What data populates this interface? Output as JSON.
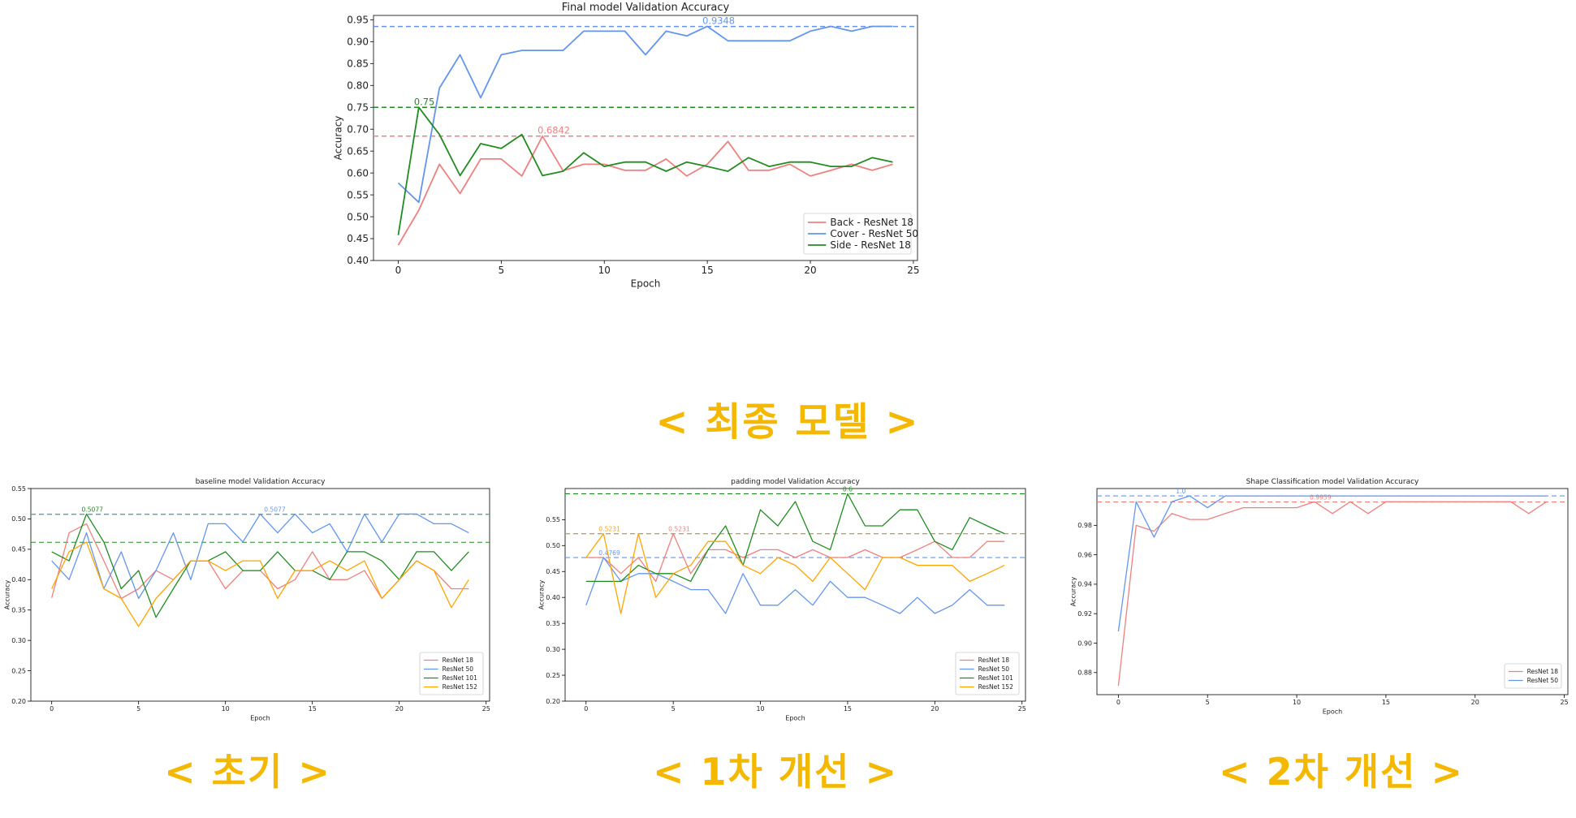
{
  "captions": {
    "final": "< 최종 모델 >",
    "baseline": "< 초기 >",
    "padding": "< 1차 개선 >",
    "shape": "< 2차 개선 >"
  },
  "chart_data": [
    {
      "id": "final",
      "type": "line",
      "title": "Final model Validation Accuracy",
      "xlabel": "Epoch",
      "ylabel": "Accuracy",
      "xlim": [
        -1.2,
        25.2
      ],
      "ylim": [
        0.4,
        0.96
      ],
      "xticks": [
        0,
        5,
        10,
        15,
        20,
        25
      ],
      "yticks": [
        0.4,
        0.45,
        0.5,
        0.55,
        0.6,
        0.65,
        0.7,
        0.75,
        0.8,
        0.85,
        0.9,
        0.95
      ],
      "ytick_labels": [
        "0.40",
        "0.45",
        "0.50",
        "0.55",
        "0.60",
        "0.65",
        "0.70",
        "0.75",
        "0.80",
        "0.85",
        "0.90",
        "0.95"
      ],
      "legend_position": "lower-right",
      "x": [
        0,
        1,
        2,
        3,
        4,
        5,
        6,
        7,
        8,
        9,
        10,
        11,
        12,
        13,
        14,
        15,
        16,
        17,
        18,
        19,
        20,
        21,
        22,
        23,
        24
      ],
      "series": [
        {
          "name": "Back - ResNet 18",
          "color": "#f08080",
          "values": [
            0.435,
            0.515,
            0.62,
            0.553,
            0.632,
            0.632,
            0.593,
            0.684,
            0.605,
            0.62,
            0.62,
            0.606,
            0.606,
            0.632,
            0.593,
            0.62,
            0.672,
            0.606,
            0.606,
            0.62,
            0.593,
            0.606,
            0.62,
            0.606,
            0.62
          ]
        },
        {
          "name": "Cover - ResNet 50",
          "color": "#6495ed",
          "values": [
            0.577,
            0.533,
            0.794,
            0.87,
            0.772,
            0.87,
            0.88,
            0.88,
            0.88,
            0.924,
            0.924,
            0.924,
            0.87,
            0.924,
            0.913,
            0.935,
            0.902,
            0.902,
            0.902,
            0.902,
            0.924,
            0.935,
            0.924,
            0.935,
            0.935
          ]
        },
        {
          "name": "Side - ResNet 18",
          "color": "#228b22",
          "values": [
            0.458,
            0.75,
            0.688,
            0.594,
            0.667,
            0.656,
            0.688,
            0.594,
            0.604,
            0.646,
            0.615,
            0.625,
            0.625,
            0.604,
            0.625,
            0.615,
            0.604,
            0.635,
            0.615,
            0.625,
            0.625,
            0.615,
            0.615,
            0.635,
            0.625
          ]
        }
      ],
      "hlines": [
        {
          "y": 0.9348,
          "color": "#6495ed",
          "label": "0.9348",
          "label_x": 15
        },
        {
          "y": 0.75,
          "color": "#228b22",
          "label": "0.75",
          "label_x": 1
        },
        {
          "y": 0.6842,
          "color": "#f08080",
          "label": "0.6842",
          "label_x": 7
        }
      ]
    },
    {
      "id": "baseline",
      "type": "line",
      "title": "baseline model Validation Accuracy",
      "xlabel": "Epoch",
      "ylabel": "Accuracy",
      "xlim": [
        -1.2,
        25.2
      ],
      "ylim": [
        0.2,
        0.55
      ],
      "xticks": [
        0,
        5,
        10,
        15,
        20,
        25
      ],
      "yticks": [
        0.2,
        0.25,
        0.3,
        0.35,
        0.4,
        0.45,
        0.5,
        0.55
      ],
      "ytick_labels": [
        "0.20",
        "0.25",
        "0.30",
        "0.35",
        "0.40",
        "0.45",
        "0.50",
        "0.55"
      ],
      "legend_position": "lower-right",
      "x": [
        0,
        1,
        2,
        3,
        4,
        5,
        6,
        7,
        8,
        9,
        10,
        11,
        12,
        13,
        14,
        15,
        16,
        17,
        18,
        19,
        20,
        21,
        22,
        23,
        24
      ],
      "series": [
        {
          "name": "ResNet 18",
          "color": "#f08080",
          "values": [
            0.37,
            0.477,
            0.492,
            0.431,
            0.369,
            0.385,
            0.415,
            0.4,
            0.431,
            0.431,
            0.385,
            0.415,
            0.415,
            0.385,
            0.4,
            0.446,
            0.4,
            0.4,
            0.415,
            0.369,
            0.4,
            0.431,
            0.415,
            0.385,
            0.385
          ]
        },
        {
          "name": "ResNet 50",
          "color": "#6495ed",
          "values": [
            0.431,
            0.4,
            0.477,
            0.385,
            0.446,
            0.369,
            0.415,
            0.477,
            0.4,
            0.492,
            0.492,
            0.462,
            0.508,
            0.477,
            0.508,
            0.477,
            0.492,
            0.446,
            0.508,
            0.462,
            0.508,
            0.508,
            0.492,
            0.492,
            0.477
          ]
        },
        {
          "name": "ResNet 101",
          "color": "#228b22",
          "values": [
            0.446,
            0.431,
            0.508,
            0.462,
            0.385,
            0.415,
            0.338,
            0.385,
            0.431,
            0.431,
            0.446,
            0.415,
            0.415,
            0.446,
            0.415,
            0.415,
            0.4,
            0.446,
            0.446,
            0.431,
            0.4,
            0.446,
            0.446,
            0.415,
            0.446
          ]
        },
        {
          "name": "ResNet 152",
          "color": "#ffa500",
          "values": [
            0.385,
            0.446,
            0.462,
            0.385,
            0.369,
            0.323,
            0.369,
            0.4,
            0.431,
            0.431,
            0.415,
            0.431,
            0.431,
            0.369,
            0.415,
            0.415,
            0.431,
            0.415,
            0.431,
            0.369,
            0.4,
            0.431,
            0.415,
            0.354,
            0.4
          ]
        }
      ],
      "hlines": [
        {
          "y": 0.5077,
          "color": "#228b22",
          "label": "0.5077",
          "label_x": 2
        },
        {
          "y": 0.5077,
          "color": "#6495ed",
          "label": "0.5077",
          "label_x": 12.5
        },
        {
          "y": 0.4615,
          "color": "#228b22",
          "label": "",
          "label_x": 2
        }
      ]
    },
    {
      "id": "padding",
      "type": "line",
      "title": "padding model Validation Accuracy",
      "xlabel": "Epoch",
      "ylabel": "Accuracy",
      "xlim": [
        -1.2,
        25.2
      ],
      "ylim": [
        0.2,
        0.61
      ],
      "xticks": [
        0,
        5,
        10,
        15,
        20,
        25
      ],
      "yticks": [
        0.2,
        0.25,
        0.3,
        0.35,
        0.4,
        0.45,
        0.5,
        0.55
      ],
      "ytick_labels": [
        "0.20",
        "0.25",
        "0.30",
        "0.35",
        "0.40",
        "0.45",
        "0.50",
        "0.55"
      ],
      "legend_position": "lower-right",
      "x": [
        0,
        1,
        2,
        3,
        4,
        5,
        6,
        7,
        8,
        9,
        10,
        11,
        12,
        13,
        14,
        15,
        16,
        17,
        18,
        19,
        20,
        21,
        22,
        23,
        24
      ],
      "series": [
        {
          "name": "ResNet 18",
          "color": "#f08080",
          "values": [
            0.477,
            0.477,
            0.446,
            0.477,
            0.431,
            0.523,
            0.446,
            0.492,
            0.492,
            0.477,
            0.492,
            0.492,
            0.477,
            0.492,
            0.477,
            0.477,
            0.492,
            0.477,
            0.477,
            0.492,
            0.508,
            0.477,
            0.477,
            0.508,
            0.508
          ]
        },
        {
          "name": "ResNet 50",
          "color": "#6495ed",
          "values": [
            0.385,
            0.477,
            0.431,
            0.446,
            0.446,
            0.431,
            0.415,
            0.415,
            0.369,
            0.446,
            0.385,
            0.385,
            0.415,
            0.385,
            0.431,
            0.4,
            0.4,
            0.385,
            0.369,
            0.4,
            0.369,
            0.385,
            0.415,
            0.385,
            0.385
          ]
        },
        {
          "name": "ResNet 101",
          "color": "#228b22",
          "values": [
            0.431,
            0.431,
            0.431,
            0.462,
            0.446,
            0.446,
            0.431,
            0.492,
            0.538,
            0.462,
            0.569,
            0.538,
            0.585,
            0.508,
            0.492,
            0.6,
            0.538,
            0.538,
            0.569,
            0.569,
            0.508,
            0.492,
            0.554,
            0.538,
            0.523
          ]
        },
        {
          "name": "ResNet 152",
          "color": "#ffa500",
          "values": [
            0.477,
            0.523,
            0.369,
            0.523,
            0.4,
            0.446,
            0.462,
            0.508,
            0.508,
            0.462,
            0.446,
            0.477,
            0.462,
            0.431,
            0.477,
            0.446,
            0.415,
            0.477,
            0.477,
            0.462,
            0.462,
            0.462,
            0.431,
            0.446,
            0.462
          ]
        }
      ],
      "hlines": [
        {
          "y": 0.6,
          "color": "#228b22",
          "label": "0.6",
          "label_x": 15
        },
        {
          "y": 0.5231,
          "color": "#228b22",
          "label": "",
          "label_x": 0
        },
        {
          "y": 0.5231,
          "color": "#ffa500",
          "label": "0.5231",
          "label_x": 1
        },
        {
          "y": 0.5231,
          "color": "#f08080",
          "label": "0.5231",
          "label_x": 5
        },
        {
          "y": 0.4769,
          "color": "#6495ed",
          "label": "0.4769",
          "label_x": 1
        }
      ]
    },
    {
      "id": "shape",
      "type": "line",
      "title": "Shape Classification model Validation Accuracy",
      "xlabel": "Epoch",
      "ylabel": "Accuracy",
      "xlim": [
        -1.2,
        25.2
      ],
      "ylim": [
        0.865,
        1.005
      ],
      "xticks": [
        0,
        5,
        10,
        15,
        20,
        25
      ],
      "yticks": [
        0.88,
        0.9,
        0.92,
        0.94,
        0.96,
        0.98
      ],
      "ytick_labels": [
        "0.88",
        "0.90",
        "0.92",
        "0.94",
        "0.96",
        "0.98"
      ],
      "legend_position": "lower-right",
      "x": [
        0,
        1,
        2,
        3,
        4,
        5,
        6,
        7,
        8,
        9,
        10,
        11,
        12,
        13,
        14,
        15,
        16,
        17,
        18,
        19,
        20,
        21,
        22,
        23,
        24
      ],
      "series": [
        {
          "name": "ResNet 18",
          "color": "#f08080",
          "values": [
            0.871,
            0.98,
            0.976,
            0.988,
            0.984,
            0.984,
            0.988,
            0.992,
            0.992,
            0.992,
            0.992,
            0.996,
            0.988,
            0.996,
            0.988,
            0.996,
            0.996,
            0.996,
            0.996,
            0.996,
            0.996,
            0.996,
            0.996,
            0.988,
            0.996
          ]
        },
        {
          "name": "ResNet 50",
          "color": "#6495ed",
          "values": [
            0.908,
            0.996,
            0.972,
            0.996,
            1.0,
            0.992,
            1.0,
            1.0,
            1.0,
            1.0,
            1.0,
            1.0,
            1.0,
            1.0,
            1.0,
            1.0,
            1.0,
            1.0,
            1.0,
            1.0,
            1.0,
            1.0,
            1.0,
            1.0,
            1.0
          ]
        }
      ],
      "hlines": [
        {
          "y": 1.0,
          "color": "#6495ed",
          "label": "1.0",
          "label_x": 3.5
        },
        {
          "y": 0.9959,
          "color": "#f08080",
          "label": "0.9959",
          "label_x": 11
        }
      ]
    }
  ]
}
